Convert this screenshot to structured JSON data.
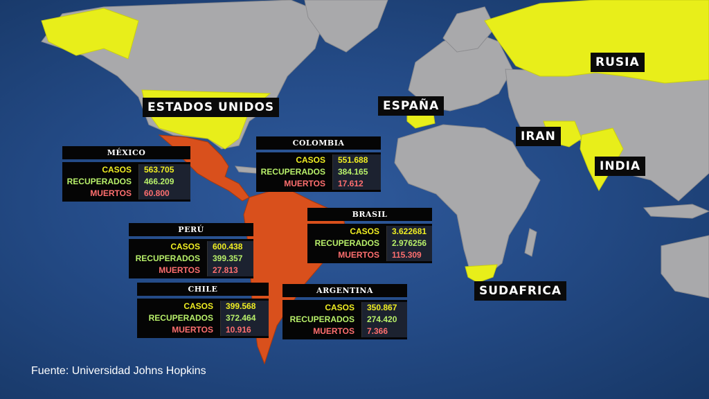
{
  "countries_highlighted": {
    "estados_unidos": "ESTADOS UNIDOS",
    "espana": "ESPAÑA",
    "rusia": "RUSIA",
    "iran": "IRAN",
    "india": "INDIA",
    "sudafrica": "SUDAFRICA"
  },
  "stats": [
    {
      "country": "MÉXICO",
      "casos": "563.705",
      "recuperados": "466.209",
      "muertos": "60.800"
    },
    {
      "country": "COLOMBIA",
      "casos": "551.688",
      "recuperados": "384.165",
      "muertos": "17.612"
    },
    {
      "country": "PERÚ",
      "casos": "600.438",
      "recuperados": "399.357",
      "muertos": "27.813"
    },
    {
      "country": "BRASIL",
      "casos": "3.622681",
      "recuperados": "2.976256",
      "muertos": "115.309"
    },
    {
      "country": "CHILE",
      "casos": "399.568",
      "recuperados": "372.464",
      "muertos": "10.916"
    },
    {
      "country": "ARGENTINA",
      "casos": "350.867",
      "recuperados": "274.420",
      "muertos": "7.366"
    }
  ],
  "row_labels": {
    "casos": "CASOS",
    "recuperados": "RECUPERADOS",
    "muertos": "MUERTOS"
  },
  "colors": {
    "ocean": "#244b87",
    "land": "#a9a9ab",
    "highlight": "#e8ee1a",
    "latam": "#d9501c"
  },
  "source": "Fuente: Universidad Johns Hopkins"
}
